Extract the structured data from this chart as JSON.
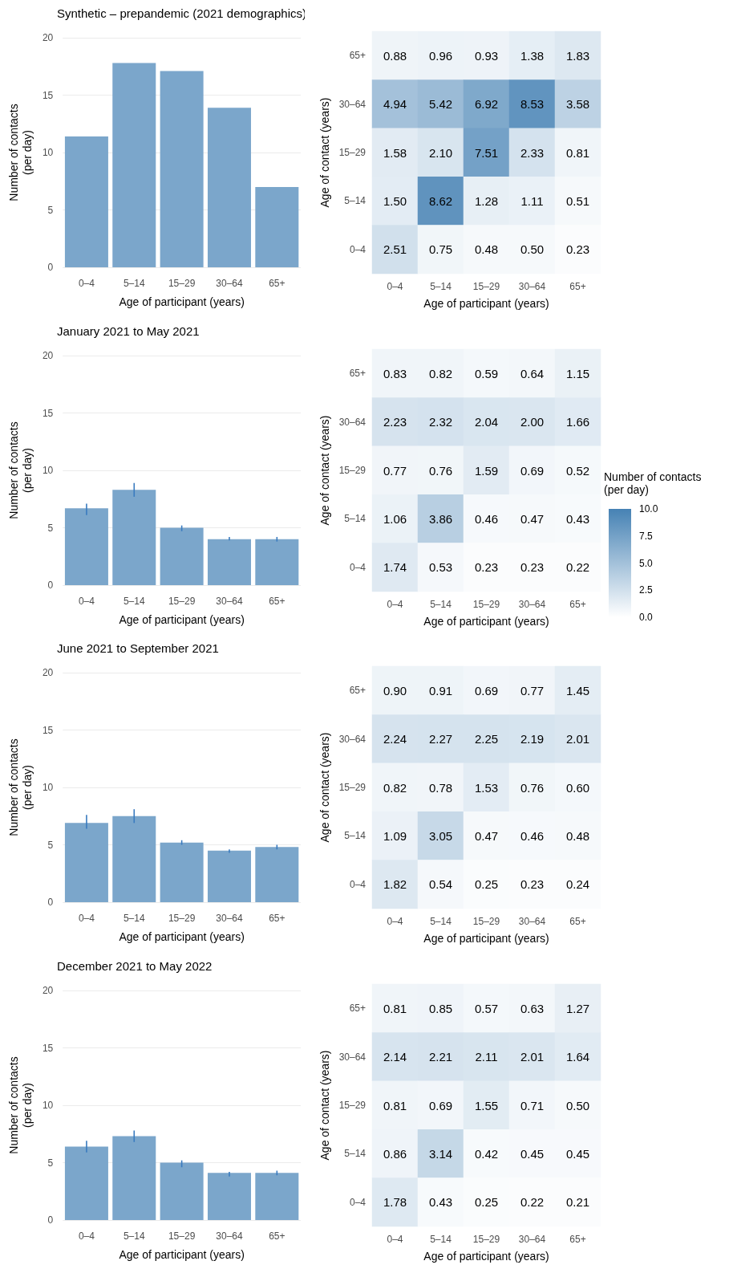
{
  "chart_data": [
    {
      "type": "bar",
      "title": "Synthetic – prepandemic (2021 demographics)",
      "xlabel": "Age of participant (years)",
      "ylabel": "Number of contacts\n(per day)",
      "categories": [
        "0–4",
        "5–14",
        "15–29",
        "30–64",
        "65+"
      ],
      "values": [
        11.4,
        17.8,
        17.1,
        13.9,
        7.0
      ],
      "color": "#7ba6cb",
      "ylim": [
        0,
        20
      ],
      "yticks": [
        0,
        5,
        10,
        15,
        20
      ],
      "grid": "y"
    },
    {
      "type": "heatmap",
      "xlabel": "Age of participant (years)",
      "ylabel": "Age of contact (years)",
      "categories": [
        "0–4",
        "5–14",
        "15–29",
        "30–64",
        "65+"
      ],
      "y_categories": [
        "65+",
        "30–64",
        "15–29",
        "5–14",
        "0–4"
      ],
      "cells": [
        [
          0.88,
          0.96,
          0.93,
          1.38,
          1.83
        ],
        [
          4.94,
          5.42,
          6.92,
          8.53,
          3.58
        ],
        [
          1.58,
          2.1,
          7.51,
          2.33,
          0.81
        ],
        [
          1.5,
          8.62,
          1.28,
          1.11,
          0.51
        ],
        [
          2.51,
          0.75,
          0.48,
          0.5,
          0.23
        ]
      ],
      "cell_labels": [
        [
          "0.88",
          "0.96",
          "0.93",
          "1.38",
          "1.83"
        ],
        [
          "4.94",
          "5.42",
          "6.92",
          "8.53",
          "3.58"
        ],
        [
          "1.58",
          "2.10",
          "7.51",
          "2.33",
          "0.81"
        ],
        [
          "1.50",
          "8.62",
          "1.28",
          "1.11",
          "0.51"
        ],
        [
          "2.51",
          "0.75",
          "0.48",
          "0.50",
          "0.23"
        ]
      ],
      "data_labels": true
    },
    {
      "type": "bar",
      "title": "January 2021 to May 2021",
      "xlabel": "Age of participant (years)",
      "ylabel": "Number of contacts\n(per day)",
      "categories": [
        "0–4",
        "5–14",
        "15–29",
        "30–64",
        "65+"
      ],
      "values": [
        6.7,
        8.3,
        5.0,
        4.0,
        4.0
      ],
      "errors": [
        [
          6.1,
          7.1
        ],
        [
          7.7,
          8.9
        ],
        [
          4.7,
          5.2
        ],
        [
          3.9,
          4.2
        ],
        [
          3.8,
          4.2
        ]
      ],
      "color": "#7ba6cb",
      "ylim": [
        0,
        20
      ],
      "yticks": [
        0,
        5,
        10,
        15,
        20
      ],
      "grid": "y"
    },
    {
      "type": "heatmap",
      "xlabel": "Age of participant (years)",
      "ylabel": "Age of contact (years)",
      "categories": [
        "0–4",
        "5–14",
        "15–29",
        "30–64",
        "65+"
      ],
      "y_categories": [
        "65+",
        "30–64",
        "15–29",
        "5–14",
        "0–4"
      ],
      "cells": [
        [
          0.83,
          0.82,
          0.59,
          0.64,
          1.15
        ],
        [
          2.23,
          2.32,
          2.04,
          2.0,
          1.66
        ],
        [
          0.77,
          0.76,
          1.59,
          0.69,
          0.52
        ],
        [
          1.06,
          3.86,
          0.46,
          0.47,
          0.43
        ],
        [
          1.74,
          0.53,
          0.23,
          0.23,
          0.22
        ]
      ],
      "cell_labels": [
        [
          "0.83",
          "0.82",
          "0.59",
          "0.64",
          "1.15"
        ],
        [
          "2.23",
          "2.32",
          "2.04",
          "2.00",
          "1.66"
        ],
        [
          "0.77",
          "0.76",
          "1.59",
          "0.69",
          "0.52"
        ],
        [
          "1.06",
          "3.86",
          "0.46",
          "0.47",
          "0.43"
        ],
        [
          "1.74",
          "0.53",
          "0.23",
          "0.23",
          "0.22"
        ]
      ],
      "data_labels": true,
      "clabel": "Number of contacts\n(per day)",
      "clim": [
        0,
        10
      ],
      "cticks": [
        {
          "value": 0,
          "label": "0.0"
        },
        2.5,
        {
          "value": 5,
          "label": "5.0"
        },
        7.5,
        {
          "value": 10,
          "label": "10.0"
        }
      ]
    },
    {
      "type": "bar",
      "title": "June 2021 to September 2021",
      "xlabel": "Age of participant (years)",
      "ylabel": "Number of contacts\n(per day)",
      "categories": [
        "0–4",
        "5–14",
        "15–29",
        "30–64",
        "65+"
      ],
      "values": [
        6.9,
        7.5,
        5.2,
        4.5,
        4.8
      ],
      "errors": [
        [
          6.4,
          7.6
        ],
        [
          6.9,
          8.1
        ],
        [
          5.0,
          5.4
        ],
        [
          4.3,
          4.6
        ],
        [
          4.6,
          5.0
        ]
      ],
      "color": "#7ba6cb",
      "ylim": [
        0,
        20
      ],
      "yticks": [
        0,
        5,
        10,
        15,
        20
      ],
      "grid": "y"
    },
    {
      "type": "heatmap",
      "xlabel": "Age of participant (years)",
      "ylabel": "Age of contact (years)",
      "categories": [
        "0–4",
        "5–14",
        "15–29",
        "30–64",
        "65+"
      ],
      "y_categories": [
        "65+",
        "30–64",
        "15–29",
        "5–14",
        "0–4"
      ],
      "cells": [
        [
          0.9,
          0.91,
          0.69,
          0.77,
          1.45
        ],
        [
          2.24,
          2.27,
          2.25,
          2.19,
          2.01
        ],
        [
          0.82,
          0.78,
          1.53,
          0.76,
          0.6
        ],
        [
          1.09,
          3.05,
          0.47,
          0.46,
          0.48
        ],
        [
          1.82,
          0.54,
          0.25,
          0.23,
          0.24
        ]
      ],
      "cell_labels": [
        [
          "0.90",
          "0.91",
          "0.69",
          "0.77",
          "1.45"
        ],
        [
          "2.24",
          "2.27",
          "2.25",
          "2.19",
          "2.01"
        ],
        [
          "0.82",
          "0.78",
          "1.53",
          "0.76",
          "0.60"
        ],
        [
          "1.09",
          "3.05",
          "0.47",
          "0.46",
          "0.48"
        ],
        [
          "1.82",
          "0.54",
          "0.25",
          "0.23",
          "0.24"
        ]
      ],
      "data_labels": true
    },
    {
      "type": "bar",
      "title": "December 2021 to May 2022",
      "xlabel": "Age of participant (years)",
      "ylabel": "Number of contacts\n(per day)",
      "categories": [
        "0–4",
        "5–14",
        "15–29",
        "30–64",
        "65+"
      ],
      "values": [
        6.4,
        7.3,
        5.0,
        4.1,
        4.1
      ],
      "errors": [
        [
          5.9,
          6.9
        ],
        [
          6.8,
          7.8
        ],
        [
          4.6,
          5.2
        ],
        [
          3.8,
          4.2
        ],
        [
          3.9,
          4.3
        ]
      ],
      "color": "#7ba6cb",
      "ylim": [
        0,
        20
      ],
      "yticks": [
        0,
        5,
        10,
        15,
        20
      ],
      "grid": "y"
    },
    {
      "type": "heatmap",
      "xlabel": "Age of participant (years)",
      "ylabel": "Age of contact (years)",
      "categories": [
        "0–4",
        "5–14",
        "15–29",
        "30–64",
        "65+"
      ],
      "y_categories": [
        "65+",
        "30–64",
        "15–29",
        "5–14",
        "0–4"
      ],
      "cells": [
        [
          0.81,
          0.85,
          0.57,
          0.63,
          1.27
        ],
        [
          2.14,
          2.21,
          2.11,
          2.01,
          1.64
        ],
        [
          0.81,
          0.69,
          1.55,
          0.71,
          0.5
        ],
        [
          0.86,
          3.14,
          0.42,
          0.45,
          0.45
        ],
        [
          1.78,
          0.43,
          0.25,
          0.22,
          0.21
        ]
      ],
      "cell_labels": [
        [
          "0.81",
          "0.85",
          "0.57",
          "0.63",
          "1.27"
        ],
        [
          "2.14",
          "2.21",
          "2.11",
          "2.01",
          "1.64"
        ],
        [
          "0.81",
          "0.69",
          "1.55",
          "0.71",
          "0.50"
        ],
        [
          "0.86",
          "3.14",
          "0.42",
          "0.45",
          "0.45"
        ],
        [
          "1.78",
          "0.43",
          "0.25",
          "0.22",
          "0.21"
        ]
      ],
      "data_labels": true
    }
  ]
}
